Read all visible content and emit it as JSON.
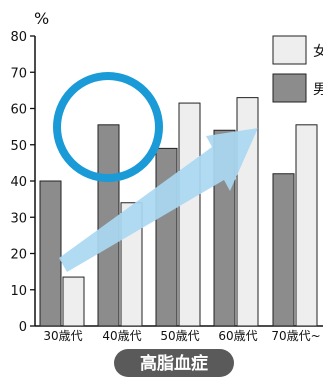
{
  "chart_data": {
    "type": "bar",
    "title": "高脂血症",
    "ylabel": "%",
    "xlabel": "",
    "ylim": [
      0,
      80
    ],
    "yticks": [
      0,
      10,
      20,
      30,
      40,
      50,
      60,
      70,
      80
    ],
    "categories": [
      "30歳代",
      "40歳代",
      "50歳代",
      "60歳代",
      "70歳代~"
    ],
    "series": [
      {
        "name": "男",
        "color": "#8c8c8c",
        "values": [
          40,
          55.5,
          49,
          54,
          42
        ]
      },
      {
        "name": "女",
        "color": "#eeeeee",
        "values": [
          13.5,
          34,
          61.5,
          63,
          55.5
        ]
      }
    ],
    "legend_position": "top-right",
    "grid": false,
    "annotations": {
      "circle_color": "#1a9ad6",
      "arrow_color": "#a9d8f2",
      "title_badge_color": "#5a5a5a"
    }
  }
}
